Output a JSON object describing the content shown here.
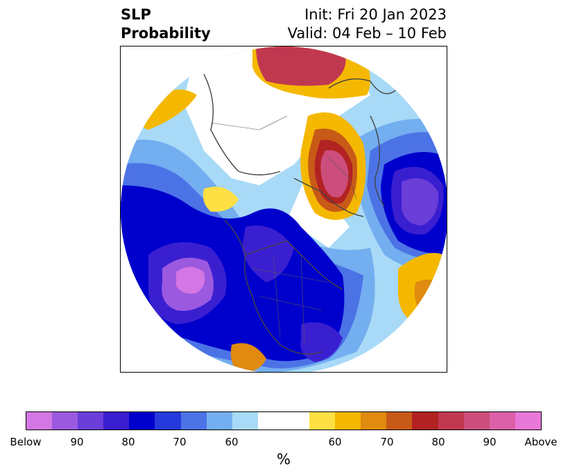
{
  "title": {
    "left_line1": "SLP",
    "left_line2": "Probability",
    "right_line1": "Init: Fri 20 Jan 2023",
    "right_line2": "Valid: 04 Feb – 10 Feb"
  },
  "map": {
    "projection": "polar-stereographic-north",
    "description_icons": [
      "coastline",
      "country-borders",
      "state-borders"
    ]
  },
  "colorbar": {
    "colors": [
      "#d476e4",
      "#9b59e0",
      "#6b3dd9",
      "#3a1fd0",
      "#0000cc",
      "#2639dc",
      "#4c73e6",
      "#73aef0",
      "#a8daf7",
      "#ffffff",
      "#ffffff",
      "#ffe044",
      "#f5b800",
      "#e08a10",
      "#c85a18",
      "#b22222",
      "#c0384f",
      "#cc4e7c",
      "#dc60a8",
      "#e878d8"
    ],
    "tick_labels": [
      "Below",
      "90",
      "80",
      "70",
      "60",
      "60",
      "70",
      "80",
      "90",
      "Above"
    ],
    "label": "%"
  }
}
